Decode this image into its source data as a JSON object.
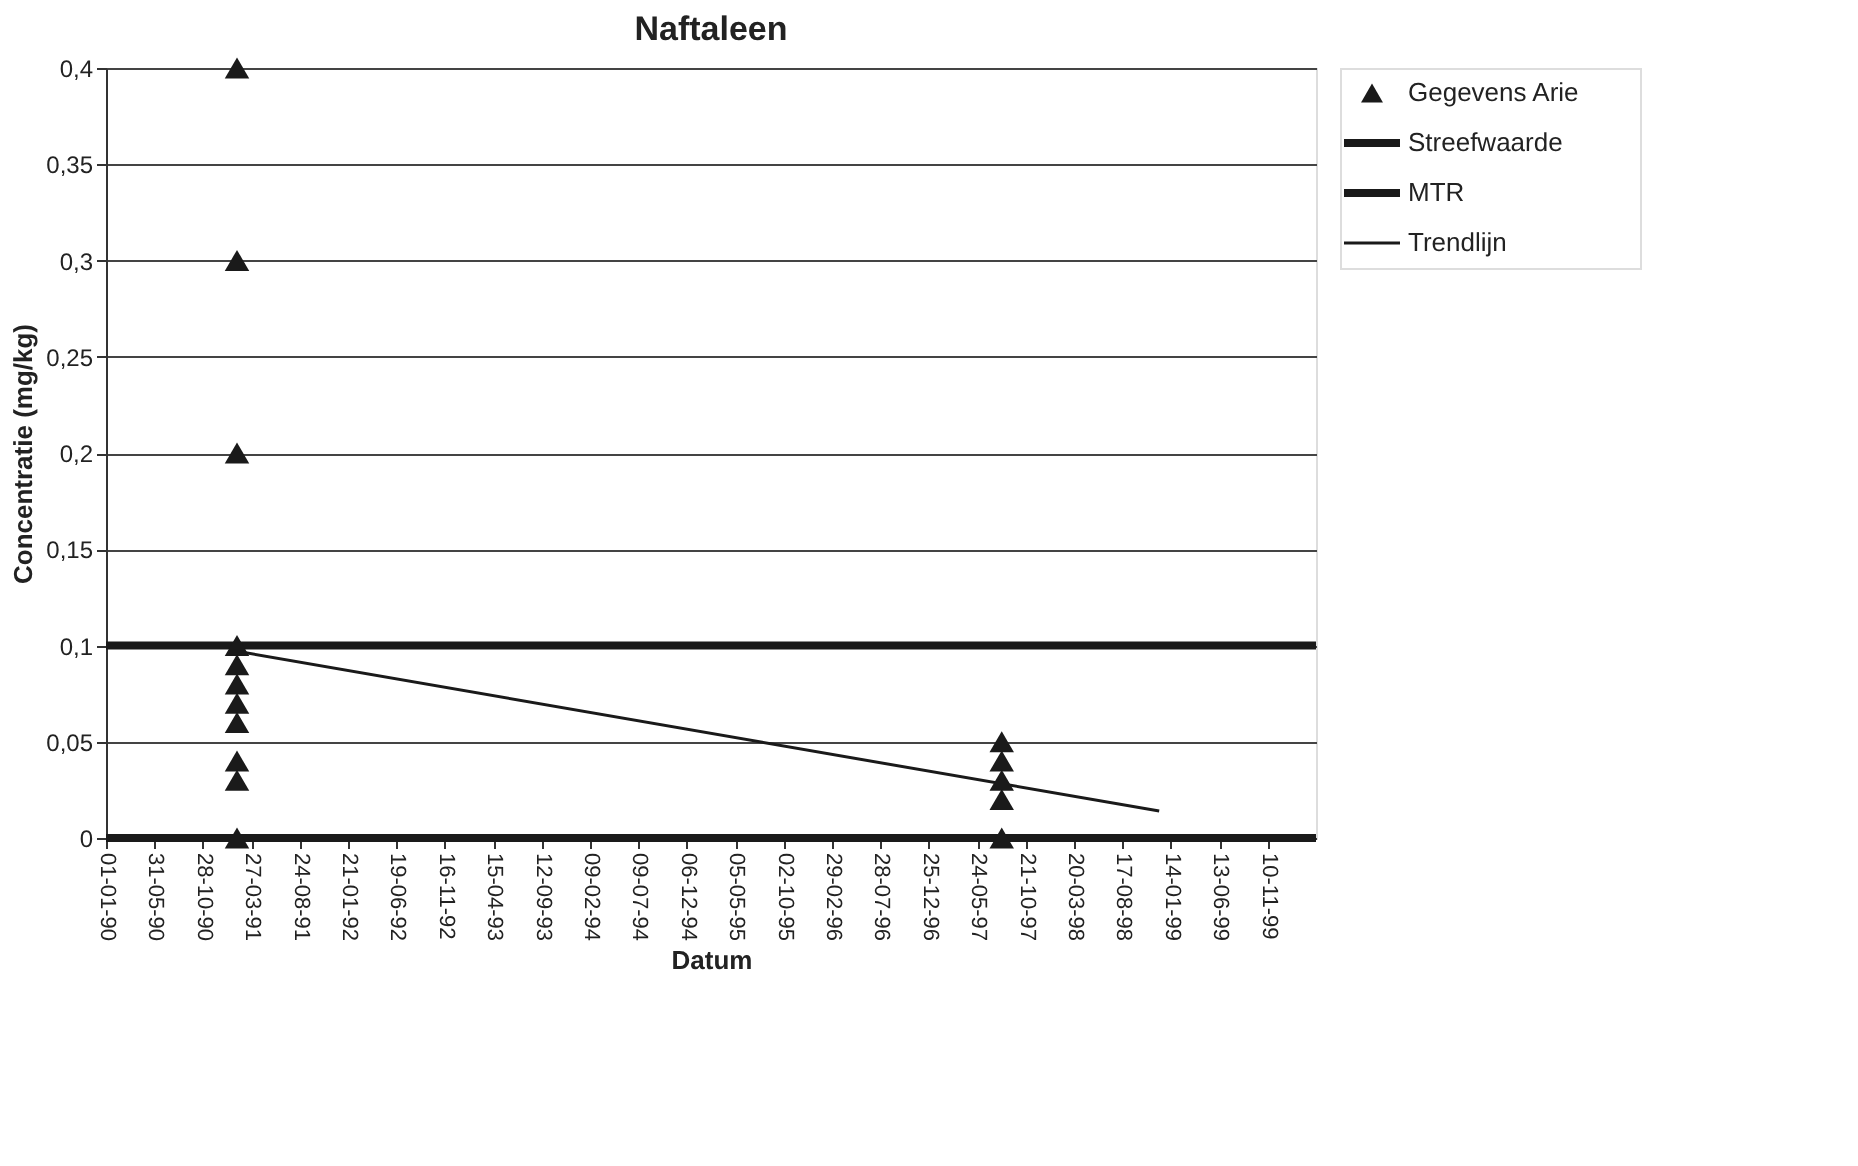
{
  "chart_data": {
    "type": "scatter",
    "title": "Naftaleen",
    "xlabel": "Datum",
    "ylabel": "Concentratie (mg/kg)",
    "xlim": [
      "1990-01-01",
      "2000-04-08"
    ],
    "ylim": [
      0,
      0.4
    ],
    "xticks": [
      {
        "value": "1990-01-01",
        "label": "01-01-90"
      },
      {
        "value": "1990-05-31",
        "label": "31-05-90"
      },
      {
        "value": "1990-10-28",
        "label": "28-10-90"
      },
      {
        "value": "1991-03-27",
        "label": "27-03-91"
      },
      {
        "value": "1991-08-24",
        "label": "24-08-91"
      },
      {
        "value": "1992-01-21",
        "label": "21-01-92"
      },
      {
        "value": "1992-06-19",
        "label": "19-06-92"
      },
      {
        "value": "1992-11-16",
        "label": "16-11-92"
      },
      {
        "value": "1993-04-15",
        "label": "15-04-93"
      },
      {
        "value": "1993-09-12",
        "label": "12-09-93"
      },
      {
        "value": "1994-02-09",
        "label": "09-02-94"
      },
      {
        "value": "1994-07-09",
        "label": "09-07-94"
      },
      {
        "value": "1994-12-06",
        "label": "06-12-94"
      },
      {
        "value": "1995-05-05",
        "label": "05-05-95"
      },
      {
        "value": "1995-10-02",
        "label": "02-10-95"
      },
      {
        "value": "1996-02-29",
        "label": "29-02-96"
      },
      {
        "value": "1996-07-28",
        "label": "28-07-96"
      },
      {
        "value": "1996-12-25",
        "label": "25-12-96"
      },
      {
        "value": "1997-05-24",
        "label": "24-05-97"
      },
      {
        "value": "1997-10-21",
        "label": "21-10-97"
      },
      {
        "value": "1998-03-20",
        "label": "20-03-98"
      },
      {
        "value": "1998-08-17",
        "label": "17-08-98"
      },
      {
        "value": "1999-01-14",
        "label": "14-01-99"
      },
      {
        "value": "1999-06-13",
        "label": "13-06-99"
      },
      {
        "value": "1999-11-10",
        "label": "10-11-99"
      }
    ],
    "yticks": [
      {
        "value": 0,
        "label": "0"
      },
      {
        "value": 0.05,
        "label": "0,05"
      },
      {
        "value": 0.1,
        "label": "0,1"
      },
      {
        "value": 0.15,
        "label": "0,15"
      },
      {
        "value": 0.2,
        "label": "0,2"
      },
      {
        "value": 0.25,
        "label": "0,25"
      },
      {
        "value": 0.3,
        "label": "0,3"
      },
      {
        "value": 0.35,
        "label": "0,35"
      },
      {
        "value": 0.4,
        "label": "0,4"
      }
    ],
    "grid": "y",
    "legend": "right",
    "marker": "triangle",
    "series": [
      {
        "name": "Gegevens Arie",
        "color": "#1a1a1a",
        "x": [
          "1991-02-11",
          "1991-02-11",
          "1991-02-11",
          "1991-02-11",
          "1991-02-11",
          "1991-02-11",
          "1991-02-11",
          "1991-02-11",
          "1991-02-11",
          "1991-02-11",
          "1991-02-11",
          "1997-08-08",
          "1997-08-08",
          "1997-08-08",
          "1997-08-08",
          "1997-08-08"
        ],
        "values": [
          0.4,
          0.3,
          0.2,
          0.1,
          0.09,
          0.08,
          0.07,
          0.06,
          0.04,
          0.03,
          0,
          0.05,
          0.04,
          0.03,
          0.02,
          0
        ]
      },
      {
        "name": "Streefwaarde",
        "type": "line",
        "marker": "none",
        "color": "#1a1a1a",
        "x": [
          "1990-01-01",
          "2000-04-08"
        ],
        "values": [
          0,
          0
        ]
      },
      {
        "name": "MTR",
        "type": "line",
        "marker": "none",
        "color": "#1a1a1a",
        "x": [
          "1990-01-01",
          "2000-04-08"
        ],
        "values": [
          0.1,
          0.1
        ]
      },
      {
        "name": "Trendlijn",
        "type": "line",
        "marker": "none",
        "color": "#1a1a1a",
        "x": [
          "1991-02-11",
          "1998-12-09"
        ],
        "values": [
          0.097,
          0.014
        ]
      }
    ]
  }
}
